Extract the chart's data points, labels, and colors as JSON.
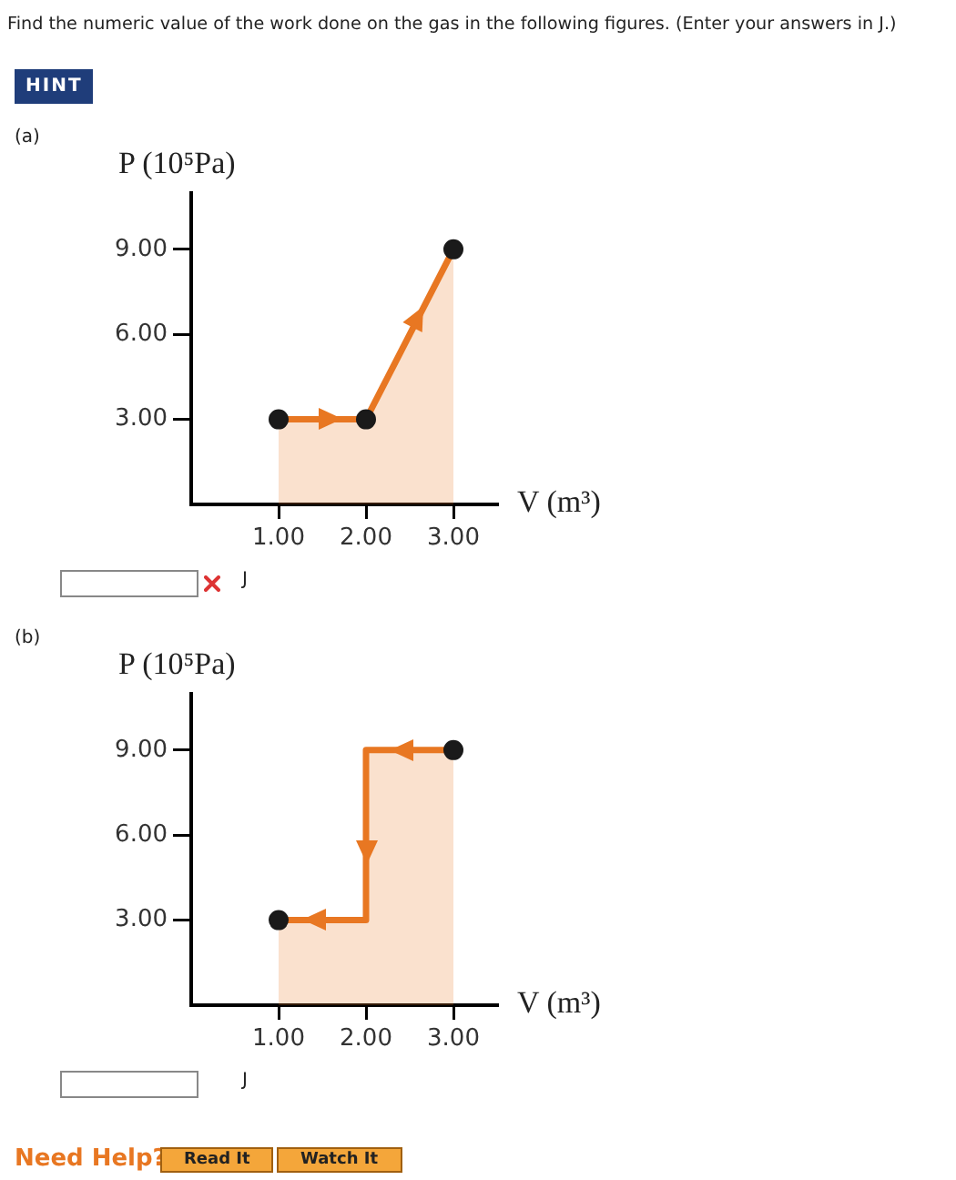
{
  "chart_data": [
    {
      "type": "area",
      "annotations": [
        "Find the numeric value of the work done on the gas in the following figures. (Enter your answers in J.)",
        "HINT",
        "(a)",
        "J"
      ],
      "xlabel": "V (m³)",
      "ylabel": "P (10⁵Pa)",
      "xlim": [
        0,
        3.5
      ],
      "ylim": [
        0,
        11
      ],
      "xticks": [
        {
          "value": 1,
          "label": "1.00"
        },
        {
          "value": 2,
          "label": "2.00"
        },
        {
          "value": 3,
          "label": "3.00"
        }
      ],
      "yticks": [
        {
          "value": 3,
          "label": "3.00"
        },
        {
          "value": 6,
          "label": "6.00"
        },
        {
          "value": 9,
          "label": "9.00"
        }
      ],
      "series": [
        {
          "type": "area",
          "marker": "none",
          "color": "#e87722",
          "x": [
            1,
            2,
            3
          ],
          "values": [
            3,
            3,
            9
          ]
        },
        {
          "type": "scatter",
          "marker": "circle",
          "color": "#1a1a1a",
          "x": [
            1,
            2,
            3
          ],
          "values": [
            3,
            3,
            9
          ]
        }
      ]
    },
    {
      "type": "area",
      "annotations": [
        "(b)",
        "J",
        "Need Help?",
        "Read It",
        "Watch It"
      ],
      "xlabel": "V (m³)",
      "ylabel": "P (10⁵Pa)",
      "xlim": [
        0,
        3.5
      ],
      "ylim": [
        0,
        11
      ],
      "xticks": [
        {
          "value": 1,
          "label": "1.00"
        },
        {
          "value": 2,
          "label": "2.00"
        },
        {
          "value": 3,
          "label": "3.00"
        }
      ],
      "yticks": [
        {
          "value": 3,
          "label": "3.00"
        },
        {
          "value": 6,
          "label": "6.00"
        },
        {
          "value": 9,
          "label": "9.00"
        }
      ],
      "series": [
        {
          "type": "area",
          "marker": "none",
          "color": "#e87722",
          "x": [
            3,
            2,
            2,
            1
          ],
          "values": [
            9,
            9,
            3,
            3
          ]
        },
        {
          "type": "scatter",
          "marker": "circle",
          "color": "#1a1a1a",
          "x": [
            1,
            3
          ],
          "values": [
            3,
            9
          ]
        }
      ]
    }
  ]
}
